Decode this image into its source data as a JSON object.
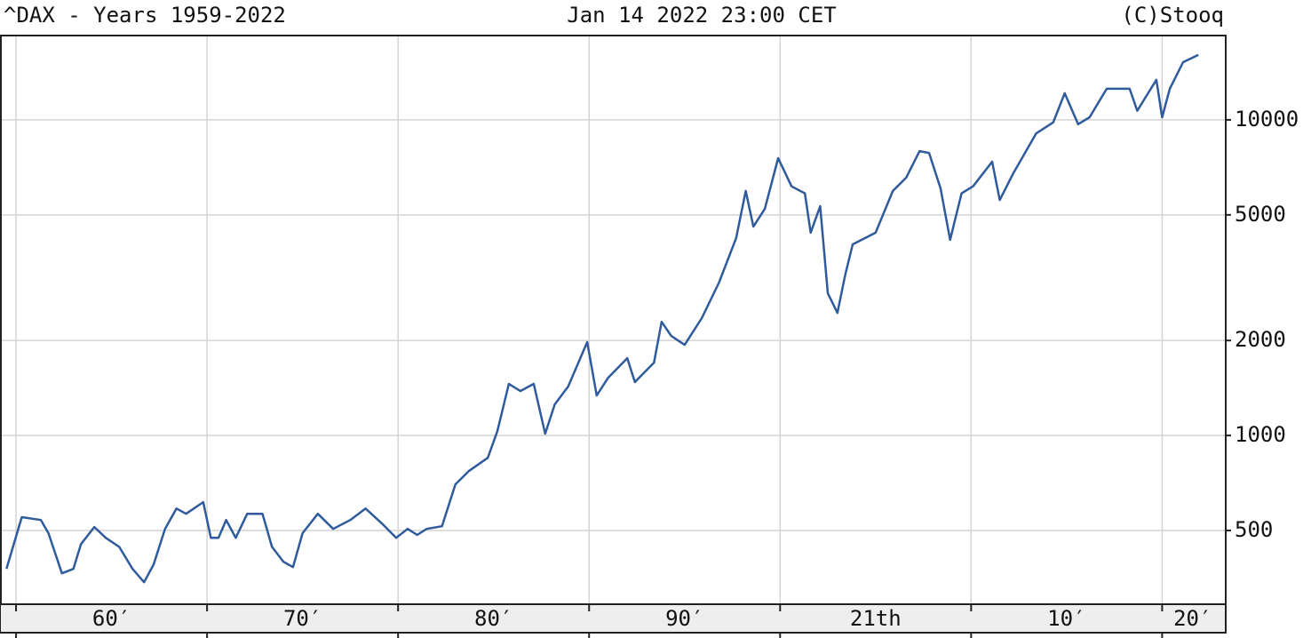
{
  "chart_data": {
    "type": "line",
    "title": "^DAX - Years 1959-2022",
    "subtitle": "Jan 14 2022 23:00 CET",
    "source": "(C)Stooq",
    "color": "#2f5a9b",
    "log_y": true,
    "grid": true,
    "xlim": [
      1959.16,
      2023.33
    ],
    "ylim": [
      292,
      18500
    ],
    "yticks": [
      500,
      1000,
      2000,
      5000,
      10000
    ],
    "xgrid": [
      1960,
      1970,
      1980,
      1990,
      2000,
      2010,
      2020
    ],
    "xticks": [
      {
        "value": 1965,
        "label": "60′"
      },
      {
        "value": 1975,
        "label": "70′"
      },
      {
        "value": 1985,
        "label": "80′"
      },
      {
        "value": 1995,
        "label": "90′"
      },
      {
        "value": 2005,
        "label": "21th"
      },
      {
        "value": 2015,
        "label": "10′"
      },
      {
        "value": 2021.6,
        "label": "20′"
      }
    ],
    "x": [
      1959.5,
      1960.3,
      1961.3,
      1961.7,
      1962.4,
      1963.0,
      1963.4,
      1964.1,
      1964.7,
      1965.4,
      1966.1,
      1966.7,
      1967.2,
      1967.8,
      1968.4,
      1968.9,
      1969.8,
      1970.2,
      1970.6,
      1971.0,
      1971.5,
      1972.1,
      1972.9,
      1973.4,
      1974.0,
      1974.5,
      1975.0,
      1975.8,
      1976.6,
      1977.5,
      1978.3,
      1979.2,
      1979.9,
      1980.5,
      1981.0,
      1981.5,
      1982.3,
      1983.0,
      1983.7,
      1984.7,
      1985.2,
      1985.8,
      1986.4,
      1987.1,
      1987.7,
      1988.2,
      1988.9,
      1989.9,
      1990.4,
      1991.0,
      1992.0,
      1992.4,
      1993.4,
      1993.8,
      1994.3,
      1995.0,
      1995.9,
      1996.8,
      1997.7,
      1998.2,
      1998.6,
      1999.2,
      1999.9,
      2000.6,
      2001.3,
      2001.6,
      2002.1,
      2002.5,
      2003.0,
      2003.4,
      2003.8,
      2005.0,
      2005.9,
      2006.6,
      2007.3,
      2007.8,
      2008.4,
      2008.9,
      2009.5,
      2010.1,
      2011.1,
      2011.5,
      2012.2,
      2013.4,
      2014.3,
      2014.9,
      2015.6,
      2016.2,
      2017.1,
      2018.3,
      2018.7,
      2019.7,
      2020.0,
      2020.4,
      2021.1,
      2021.9
    ],
    "values": [
      378,
      551,
      540,
      490,
      366,
      378,
      453,
      513,
      474,
      444,
      378,
      343,
      390,
      506,
      587,
      565,
      615,
      474,
      474,
      540,
      474,
      565,
      565,
      444,
      398,
      383,
      490,
      565,
      506,
      540,
      587,
      523,
      474,
      506,
      484,
      506,
      516,
      700,
      771,
      850,
      1033,
      1457,
      1383,
      1457,
      1013,
      1254,
      1428,
      1977,
      1339,
      1524,
      1758,
      1476,
      1702,
      2291,
      2068,
      1937,
      2354,
      3051,
      4223,
      5953,
      4590,
      5231,
      7564,
      6156,
      5850,
      4390,
      5330,
      2822,
      2447,
      3209,
      4032,
      4390,
      5953,
      6559,
      7960,
      7856,
      6070,
      4168,
      5850,
      6156,
      7369,
      5572,
      6756,
      9058,
      9817,
      12150,
      9685,
      10190,
      12550,
      12550,
      10690,
      13400,
      10190,
      12550,
      15230,
      16060
    ]
  }
}
